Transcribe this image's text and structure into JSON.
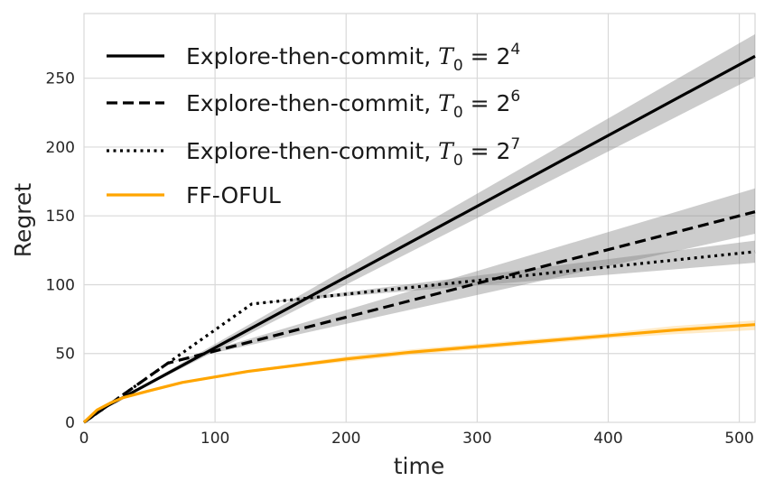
{
  "chart_data": {
    "type": "line",
    "xlabel": "time",
    "ylabel": "Regret",
    "xlim": [
      0,
      512
    ],
    "ylim": [
      0,
      297
    ],
    "xticks": [
      0,
      100,
      200,
      300,
      400,
      500
    ],
    "yticks": [
      0,
      50,
      100,
      150,
      200,
      250
    ],
    "grid": true,
    "legend_position": "top-left",
    "series": [
      {
        "name": "Explore-then-commit, T_0 = 2^4",
        "legend_prefix": "Explore-then-commit, ",
        "legend_symbol": "T",
        "legend_sub": "0",
        "legend_equals": " = 2",
        "legend_sup": "4",
        "color": "#000000",
        "dash": "solid",
        "x": [
          0,
          16,
          512
        ],
        "y": [
          0,
          11,
          266
        ],
        "band_low": [
          0,
          11,
          251
        ],
        "band_high": [
          0,
          11,
          282
        ]
      },
      {
        "name": "Explore-then-commit, T_0 = 2^6",
        "legend_prefix": "Explore-then-commit, ",
        "legend_symbol": "T",
        "legend_sub": "0",
        "legend_equals": " = 2",
        "legend_sup": "6",
        "color": "#000000",
        "dash": "dashed",
        "x": [
          0,
          64,
          512
        ],
        "y": [
          0,
          43,
          153
        ],
        "band_low": [
          0,
          43,
          137
        ],
        "band_high": [
          0,
          43,
          170
        ]
      },
      {
        "name": "Explore-then-commit, T_0 = 2^7",
        "legend_prefix": "Explore-then-commit, ",
        "legend_symbol": "T",
        "legend_sub": "0",
        "legend_equals": " = 2",
        "legend_sup": "7",
        "color": "#000000",
        "dash": "dotted",
        "x": [
          0,
          128,
          512
        ],
        "y": [
          0,
          86,
          124
        ],
        "band_low": [
          0,
          86,
          116
        ],
        "band_high": [
          0,
          86,
          132
        ]
      },
      {
        "name": "FF-OFUL",
        "legend_prefix": "FF-OFUL",
        "color": "#ffa500",
        "dash": "solid",
        "x": [
          0,
          10,
          20,
          30,
          50,
          75,
          100,
          125,
          150,
          200,
          250,
          300,
          350,
          400,
          450,
          512
        ],
        "y": [
          0,
          9,
          14,
          18,
          23,
          29,
          33,
          37,
          40,
          46,
          51,
          55,
          59,
          63,
          67,
          71
        ],
        "band_low": [
          0,
          8,
          13,
          17,
          22,
          28,
          32,
          36,
          39,
          44,
          49,
          53,
          57,
          61,
          64,
          67
        ],
        "band_high": [
          0,
          10,
          15,
          19,
          24,
          30,
          34,
          38,
          41,
          48,
          53,
          57,
          61,
          65,
          70,
          74
        ]
      }
    ]
  }
}
